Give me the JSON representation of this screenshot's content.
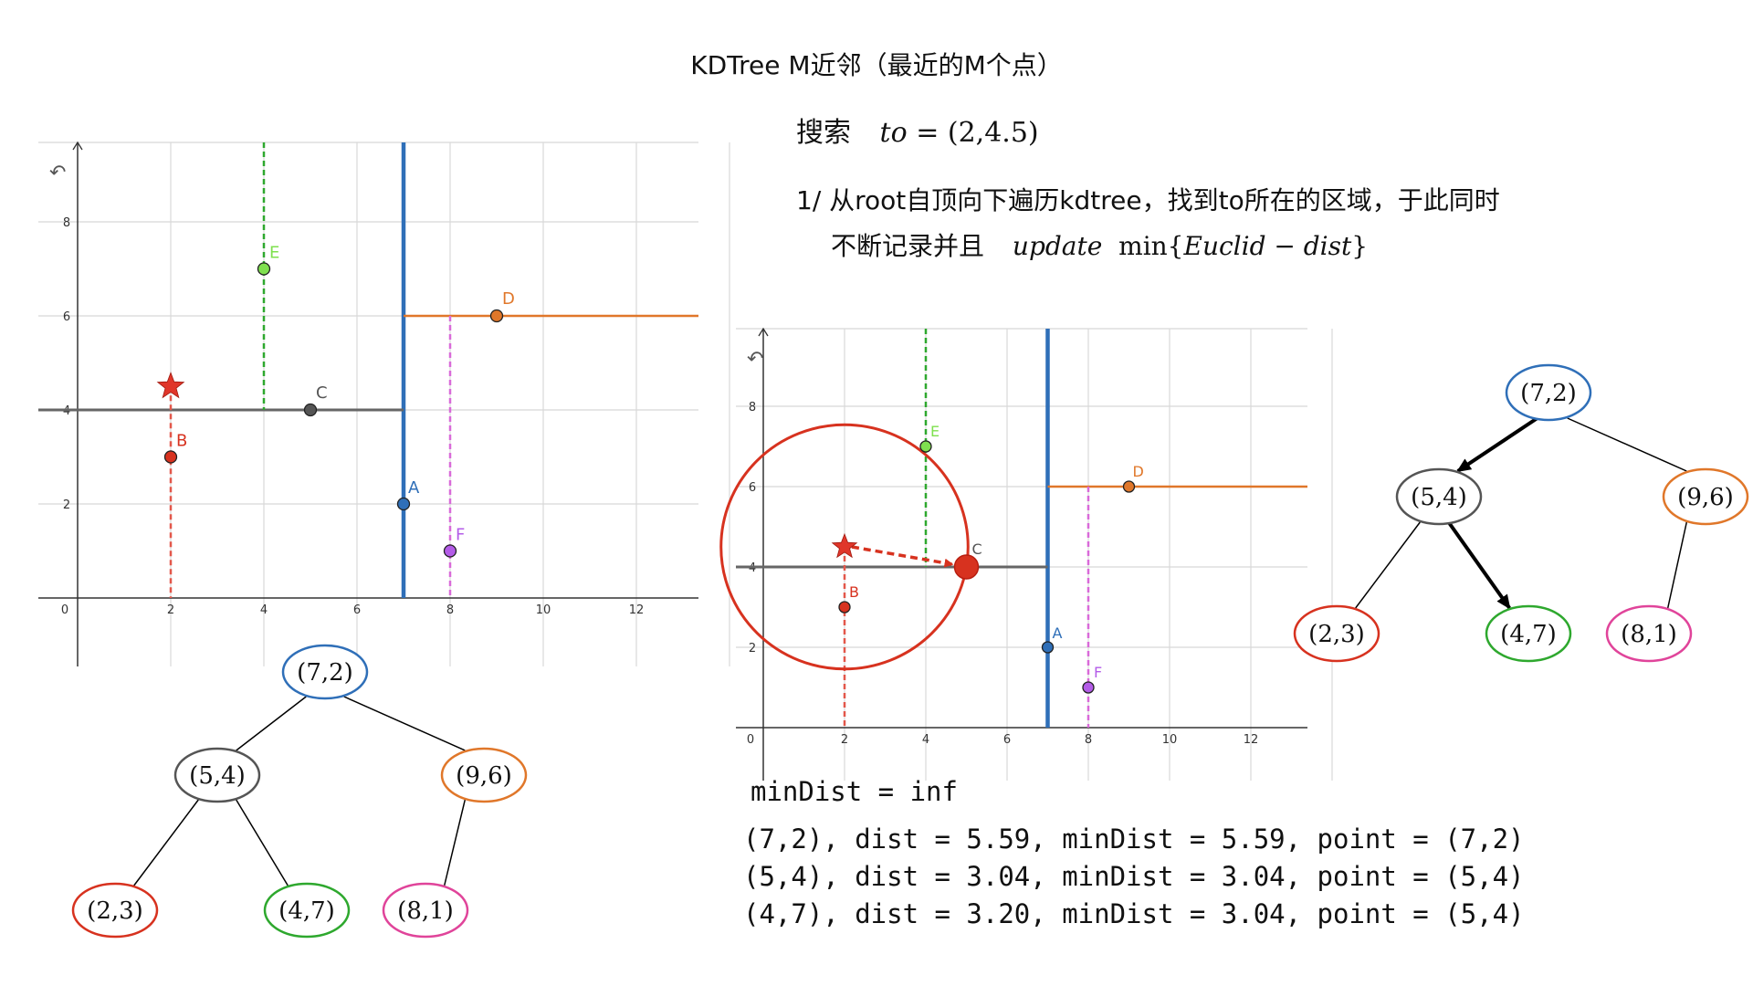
{
  "title": "KDTree M近邻（最近的M个点）",
  "search": {
    "label": "搜索",
    "var": "to",
    "eq": " = (2,4.5)"
  },
  "step1": {
    "line1": "1/  从root自顶向下遍历kdtree，找到to所在的区域，于此同时",
    "line2_text": "不断记录并且",
    "update": "update",
    "min": "min{",
    "euclid": "Euclid − dist",
    "close": "}"
  },
  "code": {
    "init": "minDist = inf",
    "row1": "(7,2), dist = 5.59, minDist = 5.59, point = (7,2)",
    "row2": "(5,4), dist = 3.04, minDist = 3.04, point = (5,4)",
    "row3_prefix": "(4,7), dist = 3.20, ",
    "row3_highlight": "minDist = 3.04, point = (5,4)"
  },
  "colors": {
    "blue": "#2f6fb8",
    "orange": "#e0772a",
    "green": "#2ea82e",
    "green_light": "#7fe04f",
    "red": "#d7321f",
    "pink": "#e0449a",
    "purple": "#b45ce8",
    "gray": "#555555",
    "text_red": "#d7321f"
  },
  "plot": {
    "x_ticks": [
      "0",
      "2",
      "4",
      "6",
      "8",
      "10",
      "12"
    ],
    "y_ticks": [
      "2",
      "4",
      "6",
      "8"
    ],
    "points": [
      {
        "label": "A",
        "x": 7,
        "y": 2
      },
      {
        "label": "B",
        "x": 2,
        "y": 3
      },
      {
        "label": "C",
        "x": 5,
        "y": 4
      },
      {
        "label": "D",
        "x": 9,
        "y": 6
      },
      {
        "label": "E",
        "x": 4,
        "y": 7
      },
      {
        "label": "F",
        "x": 8,
        "y": 1
      }
    ],
    "query": {
      "x": 2,
      "y": 4.5
    },
    "circle_radius": 3.04
  },
  "trees": {
    "nodes": [
      {
        "id": "root",
        "label": "(7,2)"
      },
      {
        "id": "n54",
        "label": "(5,4)"
      },
      {
        "id": "n96",
        "label": "(9,6)"
      },
      {
        "id": "n23",
        "label": "(2,3)"
      },
      {
        "id": "n47",
        "label": "(4,7)"
      },
      {
        "id": "n81",
        "label": "(8,1)"
      }
    ]
  },
  "icons": [
    "undo-icon"
  ]
}
